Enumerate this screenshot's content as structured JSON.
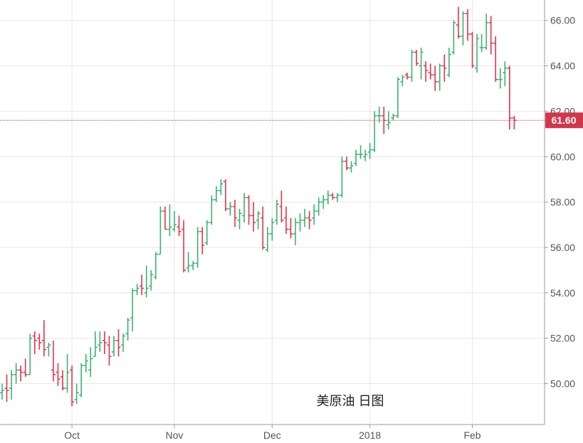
{
  "chart_data": {
    "type": "ohlc",
    "title": "",
    "watermark": "美原油 日图",
    "xlabel": "",
    "ylabel": "",
    "ylim": [
      48.2,
      66.9
    ],
    "y_ticks": [
      "50.00",
      "52.00",
      "54.00",
      "56.00",
      "58.00",
      "60.00",
      "62.00",
      "64.00",
      "66.00"
    ],
    "x_ticks": [
      {
        "label": "Oct",
        "index": 15
      },
      {
        "label": "Nov",
        "index": 37
      },
      {
        "label": "Dec",
        "index": 58
      },
      {
        "label": "2018",
        "index": 79
      },
      {
        "label": "Feb",
        "index": 101
      }
    ],
    "last_price": "61.60",
    "grid": true,
    "colors": {
      "up": "#3cb371",
      "down": "#e5334b",
      "grid": "#e6e6e6",
      "last_line": "#d1374b"
    },
    "bars": [
      [
        49.6,
        50.0,
        49.3,
        49.7
      ],
      [
        49.8,
        50.4,
        49.2,
        49.7
      ],
      [
        49.8,
        50.6,
        49.3,
        50.4
      ],
      [
        50.4,
        50.9,
        50.0,
        50.6
      ],
      [
        50.6,
        50.8,
        50.1,
        50.5
      ],
      [
        50.5,
        51.1,
        50.3,
        50.4
      ],
      [
        50.4,
        52.2,
        50.4,
        52.0
      ],
      [
        52.1,
        52.3,
        51.3,
        51.9
      ],
      [
        52.0,
        52.2,
        51.5,
        51.8
      ],
      [
        51.9,
        52.8,
        51.2,
        51.5
      ],
      [
        51.6,
        51.8,
        51.2,
        51.7
      ],
      [
        50.6,
        51.9,
        50.1,
        50.4
      ],
      [
        50.5,
        50.9,
        49.9,
        50.2
      ],
      [
        50.3,
        50.6,
        49.7,
        49.8
      ],
      [
        49.8,
        51.3,
        49.6,
        50.5
      ],
      [
        50.6,
        50.8,
        49.0,
        49.2
      ],
      [
        49.3,
        50.0,
        49.1,
        49.6
      ],
      [
        49.5,
        50.9,
        49.4,
        50.8
      ],
      [
        50.8,
        51.3,
        50.5,
        51.0
      ],
      [
        50.6,
        51.6,
        50.3,
        51.1
      ],
      [
        51.2,
        52.3,
        51.2,
        51.6
      ],
      [
        51.7,
        52.3,
        51.4,
        51.8
      ],
      [
        51.9,
        52.3,
        51.3,
        51.8
      ],
      [
        51.7,
        52.1,
        50.8,
        51.2
      ],
      [
        51.4,
        52.1,
        51.2,
        51.9
      ],
      [
        51.9,
        52.4,
        51.2,
        51.6
      ],
      [
        51.7,
        52.2,
        51.4,
        52.1
      ],
      [
        52.2,
        52.9,
        51.9,
        52.8
      ],
      [
        52.9,
        54.2,
        52.3,
        54.1
      ],
      [
        54.1,
        54.4,
        53.9,
        54.2
      ],
      [
        54.3,
        54.8,
        53.9,
        54.2
      ],
      [
        54.0,
        55.2,
        53.8,
        54.2
      ],
      [
        54.3,
        55.0,
        54.1,
        54.8
      ],
      [
        54.7,
        55.8,
        54.6,
        55.7
      ],
      [
        55.7,
        57.8,
        55.7,
        57.6
      ],
      [
        57.6,
        57.8,
        56.8,
        56.8
      ],
      [
        56.8,
        57.9,
        56.5,
        56.9
      ],
      [
        56.8,
        57.6,
        56.7,
        57.0
      ],
      [
        56.9,
        57.4,
        56.5,
        56.7
      ],
      [
        56.8,
        57.2,
        54.9,
        55.0
      ],
      [
        55.1,
        55.8,
        54.9,
        55.2
      ],
      [
        55.2,
        55.4,
        55.0,
        55.3
      ],
      [
        55.3,
        56.9,
        55.1,
        56.7
      ],
      [
        56.7,
        56.9,
        55.7,
        56.1
      ],
      [
        56.2,
        57.2,
        56.1,
        57.1
      ],
      [
        57.1,
        58.3,
        57.0,
        58.1
      ],
      [
        58.1,
        58.7,
        58.0,
        58.5
      ],
      [
        58.5,
        59.0,
        58.3,
        58.8
      ],
      [
        58.9,
        59.0,
        57.6,
        57.7
      ],
      [
        57.7,
        58.0,
        57.4,
        57.8
      ],
      [
        57.8,
        58.1,
        56.9,
        57.3
      ],
      [
        57.2,
        57.7,
        56.8,
        57.5
      ],
      [
        57.4,
        58.4,
        57.1,
        58.2
      ],
      [
        58.2,
        58.3,
        57.0,
        57.4
      ],
      [
        57.4,
        58.0,
        56.7,
        57.1
      ],
      [
        57.2,
        57.6,
        56.8,
        57.5
      ],
      [
        57.3,
        57.8,
        55.9,
        56.0
      ],
      [
        55.9,
        56.9,
        55.8,
        56.6
      ],
      [
        56.6,
        57.3,
        56.3,
        57.1
      ],
      [
        57.2,
        58.1,
        57.0,
        57.9
      ],
      [
        57.8,
        58.5,
        57.1,
        57.2
      ],
      [
        57.3,
        57.8,
        56.6,
        56.8
      ],
      [
        56.8,
        57.3,
        56.4,
        56.6
      ],
      [
        56.6,
        57.3,
        56.1,
        57.1
      ],
      [
        57.1,
        57.5,
        56.7,
        57.2
      ],
      [
        57.2,
        57.7,
        56.9,
        57.3
      ],
      [
        57.3,
        57.6,
        56.8,
        57.2
      ],
      [
        57.3,
        57.9,
        57.0,
        57.6
      ],
      [
        57.6,
        58.2,
        57.4,
        58.0
      ],
      [
        58.0,
        58.3,
        57.7,
        58.1
      ],
      [
        58.1,
        58.5,
        57.9,
        58.3
      ],
      [
        58.3,
        58.4,
        58.1,
        58.2
      ],
      [
        58.2,
        58.4,
        58.0,
        58.3
      ],
      [
        58.3,
        60.0,
        58.2,
        59.8
      ],
      [
        59.8,
        60.0,
        59.4,
        59.5
      ],
      [
        59.5,
        59.8,
        59.3,
        59.6
      ],
      [
        59.7,
        60.3,
        59.6,
        60.1
      ],
      [
        60.1,
        60.5,
        59.9,
        60.1
      ],
      [
        60.0,
        60.3,
        59.8,
        60.1
      ],
      [
        60.2,
        60.6,
        59.9,
        60.3
      ],
      [
        60.3,
        62.0,
        60.2,
        61.8
      ],
      [
        61.8,
        62.2,
        61.5,
        61.8
      ],
      [
        61.8,
        62.2,
        61.0,
        61.6
      ],
      [
        61.4,
        62.0,
        61.2,
        61.5
      ],
      [
        61.7,
        61.9,
        61.6,
        61.8
      ],
      [
        61.8,
        63.5,
        61.7,
        63.4
      ],
      [
        63.3,
        63.6,
        63.1,
        63.5
      ],
      [
        63.6,
        63.7,
        63.4,
        63.5
      ],
      [
        63.5,
        64.7,
        63.3,
        64.6
      ],
      [
        64.6,
        64.7,
        64.0,
        64.1
      ],
      [
        64.0,
        64.8,
        63.4,
        64.6
      ],
      [
        64.0,
        64.2,
        63.3,
        63.8
      ],
      [
        63.7,
        64.1,
        63.4,
        63.6
      ],
      [
        63.6,
        64.0,
        62.9,
        63.3
      ],
      [
        63.3,
        64.1,
        62.9,
        64.0
      ],
      [
        64.0,
        64.5,
        63.3,
        63.9
      ],
      [
        63.6,
        64.8,
        63.5,
        64.5
      ],
      [
        64.6,
        66.0,
        64.5,
        65.9
      ],
      [
        65.8,
        66.6,
        65.2,
        65.3
      ],
      [
        65.3,
        66.4,
        64.9,
        66.3
      ],
      [
        66.3,
        66.5,
        65.1,
        65.4
      ],
      [
        65.4,
        65.5,
        63.9,
        64.0
      ],
      [
        63.9,
        65.4,
        63.7,
        65.2
      ],
      [
        64.8,
        65.4,
        64.6,
        64.8
      ],
      [
        64.8,
        66.3,
        64.7,
        65.9
      ],
      [
        65.9,
        66.2,
        64.5,
        65.0
      ],
      [
        65.0,
        65.3,
        63.3,
        63.4
      ],
      [
        63.4,
        63.9,
        63.0,
        63.4
      ],
      [
        63.7,
        64.2,
        63.1,
        63.9
      ],
      [
        63.9,
        64.0,
        61.2,
        61.7
      ],
      [
        61.7,
        61.8,
        61.2,
        61.6
      ]
    ]
  }
}
